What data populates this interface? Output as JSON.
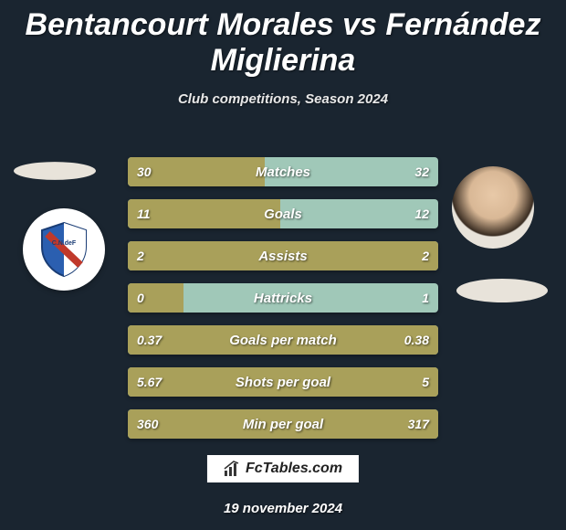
{
  "title_line1": "Bentancourt Morales vs Fernández",
  "title_line2": "Miglierina",
  "subtitle": "Club competitions, Season 2024",
  "date": "19 november 2024",
  "footer_brand": "FcTables.com",
  "colors": {
    "background": "#1a2530",
    "bar_bg": "#a0c8b8",
    "bar_fill": "#a9a05a",
    "text": "#ffffff"
  },
  "stats": [
    {
      "label": "Matches",
      "left_val": "30",
      "right_val": "32",
      "left_pct": 44,
      "right_pct": 0
    },
    {
      "label": "Goals",
      "left_val": "11",
      "right_val": "12",
      "left_pct": 49,
      "right_pct": 0
    },
    {
      "label": "Assists",
      "left_val": "2",
      "right_val": "2",
      "left_pct": 50,
      "right_pct": 50
    },
    {
      "label": "Hattricks",
      "left_val": "0",
      "right_val": "1",
      "left_pct": 18,
      "right_pct": 0
    },
    {
      "label": "Goals per match",
      "left_val": "0.37",
      "right_val": "0.38",
      "left_pct": 50,
      "right_pct": 50
    },
    {
      "label": "Shots per goal",
      "left_val": "5.67",
      "right_val": "5",
      "left_pct": 100,
      "right_pct": 0
    },
    {
      "label": "Min per goal",
      "left_val": "360",
      "right_val": "317",
      "left_pct": 100,
      "right_pct": 0
    }
  ]
}
